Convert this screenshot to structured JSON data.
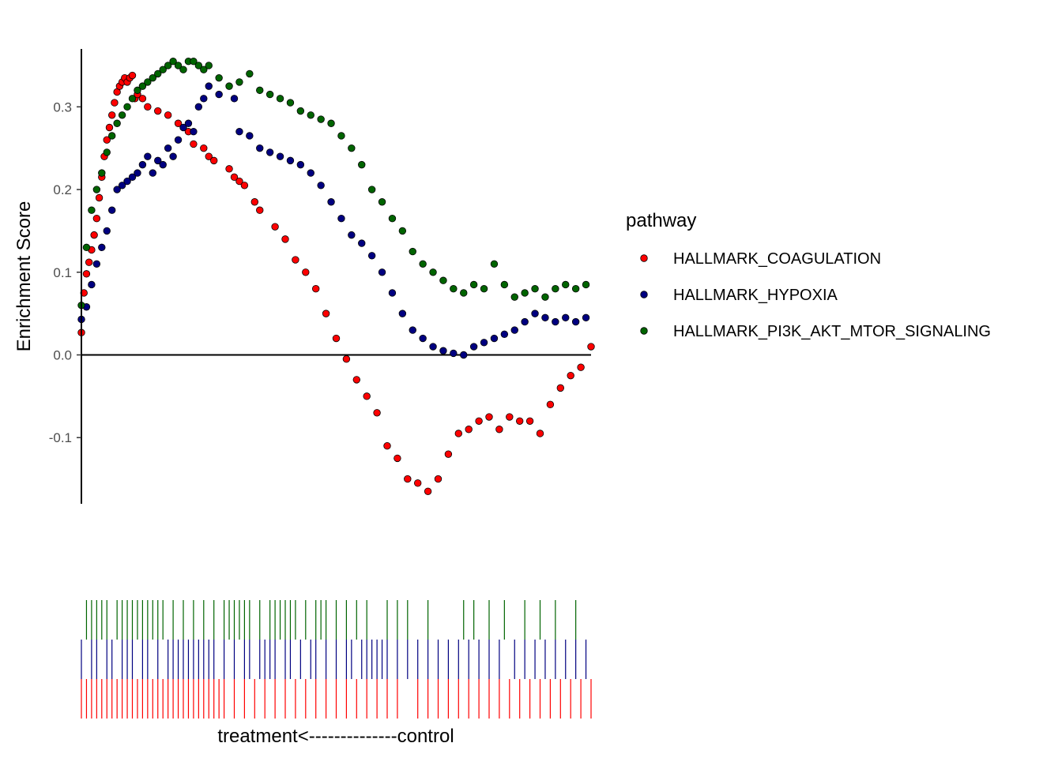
{
  "chart_data": {
    "type": "scatter",
    "title": "",
    "ylabel": "Enrichment Score",
    "xlabel": "treatment<--------------control",
    "xlim": [
      0,
      1
    ],
    "ylim": [
      -0.18,
      0.37
    ],
    "yticks": [
      -0.1,
      0.0,
      0.1,
      0.2,
      0.3
    ],
    "ytick_labels": [
      "-0.1",
      "0.0",
      "0.1",
      "0.2",
      "0.3"
    ],
    "zero_line": true,
    "grid": false,
    "legend": {
      "title": "pathway",
      "placement": "right"
    },
    "series": [
      {
        "name": "HALLMARK_COAGULATION",
        "color": "#ff0000",
        "x": [
          0.0,
          0.005,
          0.01,
          0.015,
          0.02,
          0.025,
          0.03,
          0.035,
          0.04,
          0.045,
          0.05,
          0.055,
          0.06,
          0.065,
          0.07,
          0.075,
          0.08,
          0.085,
          0.09,
          0.095,
          0.1,
          0.105,
          0.11,
          0.12,
          0.13,
          0.15,
          0.17,
          0.19,
          0.21,
          0.22,
          0.24,
          0.25,
          0.26,
          0.29,
          0.3,
          0.31,
          0.32,
          0.34,
          0.35,
          0.38,
          0.4,
          0.42,
          0.44,
          0.46,
          0.48,
          0.5,
          0.52,
          0.54,
          0.56,
          0.58,
          0.6,
          0.62,
          0.64,
          0.66,
          0.68,
          0.7,
          0.72,
          0.74,
          0.76,
          0.78,
          0.8,
          0.82,
          0.84,
          0.86,
          0.88,
          0.9,
          0.92,
          0.94,
          0.96,
          0.98,
          1.0
        ],
        "y": [
          0.027,
          0.075,
          0.098,
          0.112,
          0.127,
          0.145,
          0.165,
          0.19,
          0.215,
          0.24,
          0.26,
          0.275,
          0.29,
          0.305,
          0.318,
          0.325,
          0.33,
          0.335,
          0.33,
          0.335,
          0.338,
          0.31,
          0.315,
          0.31,
          0.3,
          0.295,
          0.29,
          0.28,
          0.27,
          0.255,
          0.25,
          0.24,
          0.235,
          0.225,
          0.215,
          0.21,
          0.205,
          0.185,
          0.175,
          0.155,
          0.14,
          0.115,
          0.1,
          0.08,
          0.05,
          0.02,
          -0.005,
          -0.03,
          -0.05,
          -0.07,
          -0.11,
          -0.125,
          -0.15,
          -0.155,
          -0.165,
          -0.15,
          -0.12,
          -0.095,
          -0.09,
          -0.08,
          -0.075,
          -0.09,
          -0.075,
          -0.08,
          -0.08,
          -0.095,
          -0.06,
          -0.04,
          -0.025,
          -0.015,
          0.01
        ]
      },
      {
        "name": "HALLMARK_HYPOXIA",
        "color": "#000080",
        "x": [
          0.0,
          0.01,
          0.02,
          0.03,
          0.04,
          0.05,
          0.06,
          0.07,
          0.08,
          0.09,
          0.1,
          0.11,
          0.12,
          0.13,
          0.14,
          0.15,
          0.16,
          0.17,
          0.18,
          0.19,
          0.2,
          0.21,
          0.22,
          0.23,
          0.24,
          0.25,
          0.27,
          0.3,
          0.31,
          0.33,
          0.35,
          0.37,
          0.39,
          0.41,
          0.43,
          0.45,
          0.47,
          0.49,
          0.51,
          0.53,
          0.55,
          0.57,
          0.59,
          0.61,
          0.63,
          0.65,
          0.67,
          0.69,
          0.71,
          0.73,
          0.75,
          0.77,
          0.79,
          0.81,
          0.83,
          0.85,
          0.87,
          0.89,
          0.91,
          0.93,
          0.95,
          0.97,
          0.99
        ],
        "y": [
          0.043,
          0.058,
          0.085,
          0.11,
          0.13,
          0.15,
          0.175,
          0.2,
          0.205,
          0.21,
          0.215,
          0.22,
          0.23,
          0.24,
          0.22,
          0.235,
          0.23,
          0.25,
          0.24,
          0.26,
          0.275,
          0.28,
          0.27,
          0.3,
          0.31,
          0.325,
          0.315,
          0.31,
          0.27,
          0.265,
          0.25,
          0.245,
          0.24,
          0.235,
          0.23,
          0.22,
          0.205,
          0.185,
          0.165,
          0.145,
          0.135,
          0.12,
          0.1,
          0.075,
          0.05,
          0.03,
          0.02,
          0.01,
          0.005,
          0.002,
          0.0,
          0.01,
          0.015,
          0.02,
          0.025,
          0.03,
          0.04,
          0.05,
          0.045,
          0.04,
          0.045,
          0.04,
          0.045
        ]
      },
      {
        "name": "HALLMARK_PI3K_AKT_MTOR_SIGNALING",
        "color": "#006400",
        "x": [
          0.0,
          0.01,
          0.02,
          0.03,
          0.04,
          0.05,
          0.06,
          0.07,
          0.08,
          0.09,
          0.1,
          0.11,
          0.12,
          0.13,
          0.14,
          0.15,
          0.16,
          0.17,
          0.18,
          0.19,
          0.2,
          0.21,
          0.22,
          0.23,
          0.24,
          0.25,
          0.27,
          0.29,
          0.31,
          0.33,
          0.35,
          0.37,
          0.39,
          0.41,
          0.43,
          0.45,
          0.47,
          0.49,
          0.51,
          0.53,
          0.55,
          0.57,
          0.59,
          0.61,
          0.63,
          0.65,
          0.67,
          0.69,
          0.71,
          0.73,
          0.75,
          0.77,
          0.79,
          0.81,
          0.83,
          0.85,
          0.87,
          0.89,
          0.91,
          0.93,
          0.95,
          0.97,
          0.99
        ],
        "y": [
          0.06,
          0.13,
          0.175,
          0.2,
          0.22,
          0.245,
          0.265,
          0.28,
          0.29,
          0.3,
          0.31,
          0.32,
          0.325,
          0.33,
          0.335,
          0.34,
          0.345,
          0.35,
          0.355,
          0.35,
          0.345,
          0.355,
          0.355,
          0.35,
          0.345,
          0.35,
          0.335,
          0.325,
          0.33,
          0.34,
          0.32,
          0.315,
          0.31,
          0.305,
          0.295,
          0.29,
          0.285,
          0.28,
          0.265,
          0.25,
          0.23,
          0.2,
          0.185,
          0.165,
          0.15,
          0.125,
          0.11,
          0.1,
          0.09,
          0.08,
          0.075,
          0.085,
          0.08,
          0.11,
          0.085,
          0.07,
          0.075,
          0.08,
          0.07,
          0.08,
          0.085,
          0.08,
          0.085
        ]
      }
    ],
    "rug": [
      {
        "name": "HALLMARK_PI3K_AKT_MTOR_SIGNALING",
        "color": "#006400",
        "x": [
          0.01,
          0.02,
          0.03,
          0.04,
          0.05,
          0.07,
          0.08,
          0.09,
          0.1,
          0.11,
          0.12,
          0.13,
          0.14,
          0.15,
          0.16,
          0.18,
          0.2,
          0.22,
          0.24,
          0.26,
          0.28,
          0.29,
          0.3,
          0.31,
          0.32,
          0.33,
          0.35,
          0.37,
          0.38,
          0.39,
          0.4,
          0.41,
          0.42,
          0.44,
          0.46,
          0.47,
          0.48,
          0.5,
          0.52,
          0.54,
          0.56,
          0.6,
          0.62,
          0.64,
          0.68,
          0.75,
          0.77,
          0.8,
          0.83,
          0.87,
          0.9,
          0.93,
          0.97
        ]
      },
      {
        "name": "HALLMARK_HYPOXIA",
        "color": "#000080",
        "x": [
          0.0,
          0.02,
          0.03,
          0.05,
          0.06,
          0.08,
          0.09,
          0.1,
          0.12,
          0.13,
          0.15,
          0.17,
          0.18,
          0.19,
          0.2,
          0.21,
          0.22,
          0.23,
          0.24,
          0.25,
          0.26,
          0.28,
          0.3,
          0.32,
          0.33,
          0.35,
          0.36,
          0.37,
          0.38,
          0.4,
          0.41,
          0.43,
          0.45,
          0.46,
          0.48,
          0.5,
          0.52,
          0.53,
          0.55,
          0.56,
          0.57,
          0.58,
          0.59,
          0.6,
          0.62,
          0.64,
          0.66,
          0.68,
          0.7,
          0.72,
          0.74,
          0.76,
          0.78,
          0.8,
          0.82,
          0.85,
          0.87,
          0.89,
          0.91,
          0.93,
          0.95,
          0.97,
          0.99
        ]
      },
      {
        "name": "HALLMARK_COAGULATION",
        "color": "#ff0000",
        "x": [
          0.0,
          0.01,
          0.02,
          0.03,
          0.04,
          0.05,
          0.06,
          0.07,
          0.08,
          0.09,
          0.1,
          0.11,
          0.12,
          0.13,
          0.14,
          0.15,
          0.16,
          0.17,
          0.18,
          0.19,
          0.2,
          0.21,
          0.22,
          0.23,
          0.24,
          0.25,
          0.26,
          0.27,
          0.28,
          0.3,
          0.32,
          0.34,
          0.36,
          0.38,
          0.4,
          0.42,
          0.44,
          0.46,
          0.48,
          0.5,
          0.52,
          0.54,
          0.56,
          0.58,
          0.6,
          0.62,
          0.66,
          0.68,
          0.7,
          0.72,
          0.74,
          0.76,
          0.78,
          0.8,
          0.82,
          0.84,
          0.86,
          0.88,
          0.9,
          0.92,
          0.94,
          0.96,
          0.98,
          1.0
        ]
      }
    ]
  }
}
